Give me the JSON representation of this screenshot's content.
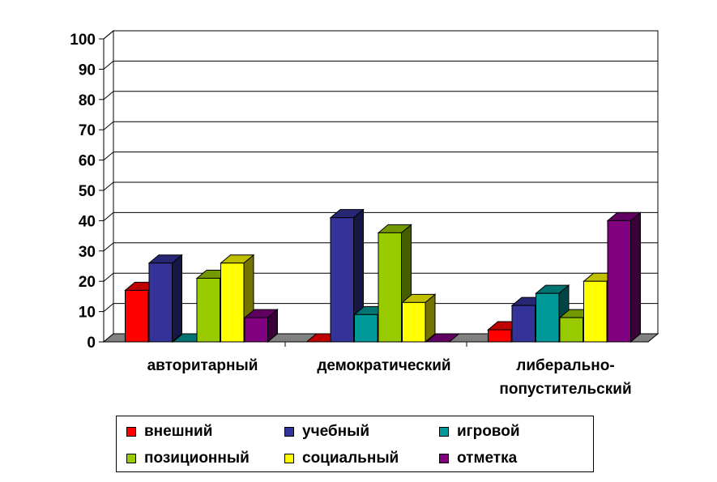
{
  "chart_data": {
    "type": "bar",
    "categories": [
      [
        "авторитарный"
      ],
      [
        "демократический"
      ],
      [
        "либерально-",
        "попустительский"
      ]
    ],
    "series": [
      {
        "name": "внешний",
        "color": "#FF0000",
        "values": [
          17,
          0,
          4
        ]
      },
      {
        "name": "учебный",
        "color": "#333399",
        "values": [
          26,
          41,
          12
        ]
      },
      {
        "name": "игровой",
        "color": "#009999",
        "values": [
          0,
          9,
          16
        ]
      },
      {
        "name": "позиционный",
        "color": "#99CC00",
        "values": [
          21,
          36,
          8
        ]
      },
      {
        "name": "социальный",
        "color": "#FFFF00",
        "values": [
          26,
          13,
          20
        ]
      },
      {
        "name": "отметка",
        "color": "#800080",
        "values": [
          8,
          0,
          40
        ]
      }
    ],
    "ylim": [
      0,
      100
    ],
    "yticks": [
      0,
      10,
      20,
      30,
      40,
      50,
      60,
      70,
      80,
      90,
      100
    ],
    "grid": true,
    "legend_position": "bottom",
    "xlabel": "",
    "ylabel": ""
  }
}
